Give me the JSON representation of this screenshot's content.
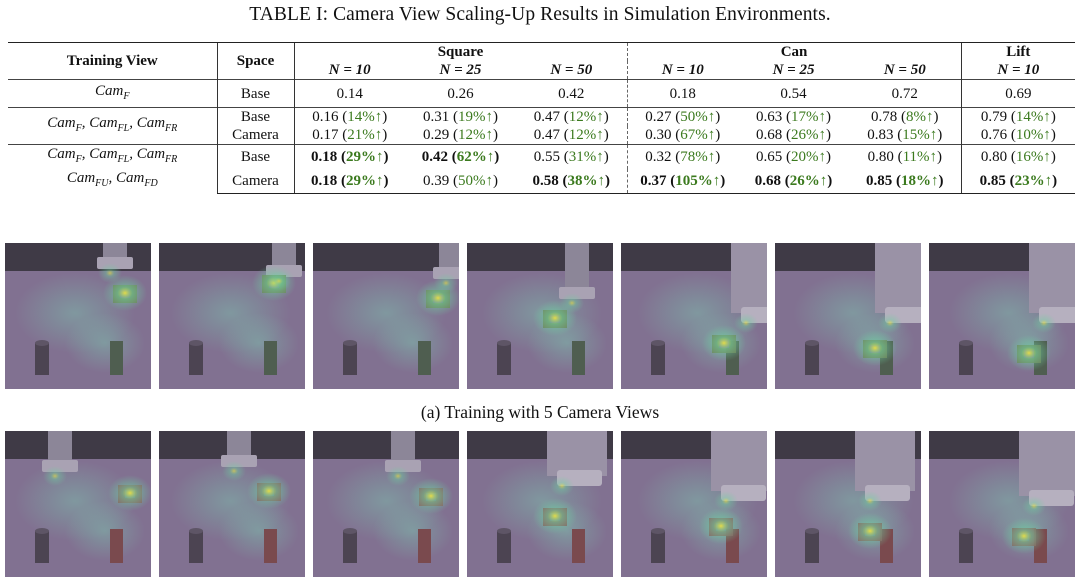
{
  "caption": "TABLE I: Camera View Scaling-Up Results in Simulation Environments.",
  "table": {
    "headers": {
      "training_view": "Training View",
      "space": "Space",
      "square": "Square",
      "can": "Can",
      "lift": "Lift",
      "n10": "N = 10",
      "n25": "N = 25",
      "n50": "N = 50"
    },
    "rows": [
      {
        "view": "Cam_F",
        "entries": [
          {
            "space": "Base",
            "cells": [
              "0.14",
              "0.26",
              "0.42",
              "0.18",
              "0.54",
              "0.72",
              "0.69"
            ]
          }
        ]
      },
      {
        "view": "Cam_F, Cam_FL, Cam_FR",
        "entries": [
          {
            "space": "Base",
            "cells": [
              "0.16 (14%↑)",
              "0.31 (19%↑)",
              "0.47 (12%↑)",
              "0.27 (50%↑)",
              "0.63 (17%↑)",
              "0.78 (8%↑)",
              "0.79 (14%↑)"
            ]
          },
          {
            "space": "Camera",
            "cells": [
              "0.17 (21%↑)",
              "0.29 (12%↑)",
              "0.47 (12%↑)",
              "0.30 (67%↑)",
              "0.68 (26%↑)",
              "0.83 (15%↑)",
              "0.76 (10%↑)"
            ]
          }
        ]
      },
      {
        "view": "Cam_F, Cam_FL, Cam_FR",
        "view2": "Cam_FU, Cam_FD",
        "entries": [
          {
            "space": "Base",
            "cells": [
              "0.18 (29%↑)",
              "0.42 (62%↑)",
              "0.55 (31%↑)",
              "0.32 (78%↑)",
              "0.65 (20%↑)",
              "0.80 (11%↑)",
              "0.80 (16%↑)"
            ]
          },
          {
            "space": "Camera",
            "cells": [
              "0.18 (29%↑)",
              "0.39 (50%↑)",
              "0.58 (38%↑)",
              "0.37 (105%↑)",
              "0.68 (26%↑)",
              "0.85 (18%↑)",
              "0.85 (23%↑)"
            ]
          }
        ]
      }
    ]
  },
  "subcaption_a": "(a) Training with 5 Camera Views",
  "colors": {
    "gain_text": "#3b7a1e",
    "scene_background": "#6b5d75",
    "heat_hot": "#e8e046",
    "heat_warm": "#6fd0a0"
  },
  "figure_icons": [
    "robot-gripper",
    "square-nut",
    "round-peg",
    "square-peg",
    "attention-heatmap"
  ]
}
